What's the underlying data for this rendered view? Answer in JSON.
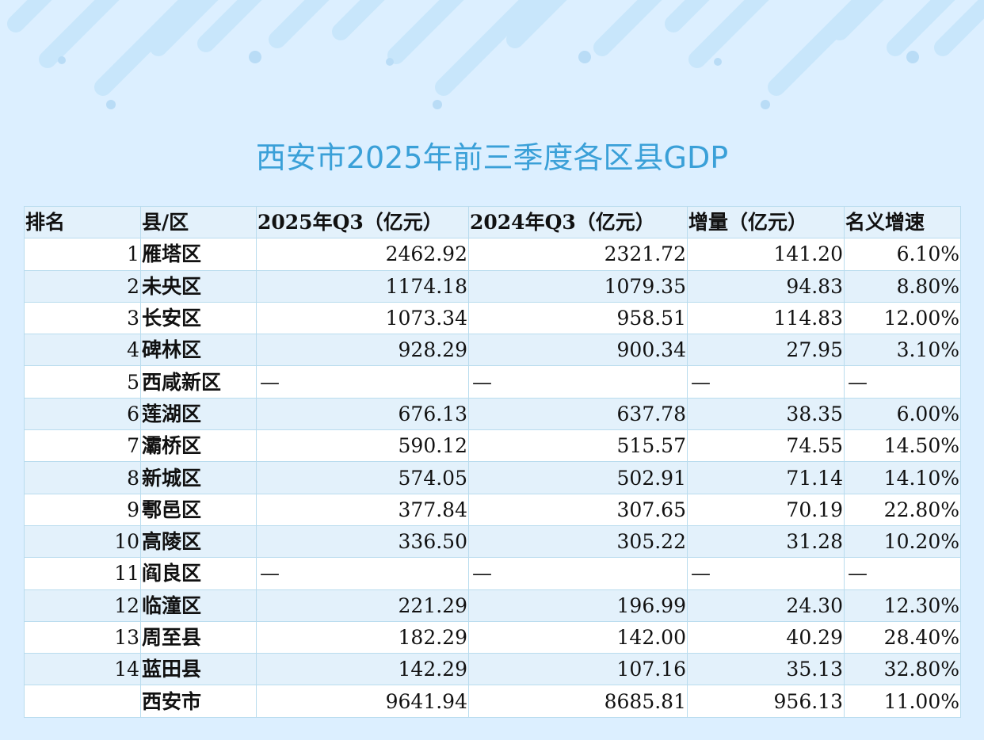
{
  "title": "西安市2025年前三季度各区县GDP",
  "colors": {
    "title": "#3aa0d8",
    "background": "#dcefff",
    "row_alt": "#e3f1fb",
    "border": "#b9dcee"
  },
  "table": {
    "headers": [
      "排名",
      "县/区",
      "2025年Q3（亿元）",
      "2024年Q3（亿元）",
      "增量（亿元）",
      "名义增速"
    ],
    "rows": [
      {
        "rank": "1",
        "name": "雁塔区",
        "v2025": "2462.92",
        "v2024": "2321.72",
        "increase": "141.20",
        "growth": "6.10%"
      },
      {
        "rank": "2",
        "name": "未央区",
        "v2025": "1174.18",
        "v2024": "1079.35",
        "increase": "94.83",
        "growth": "8.80%"
      },
      {
        "rank": "3",
        "name": "长安区",
        "v2025": "1073.34",
        "v2024": "958.51",
        "increase": "114.83",
        "growth": "12.00%"
      },
      {
        "rank": "4",
        "name": "碑林区",
        "v2025": "928.29",
        "v2024": "900.34",
        "increase": "27.95",
        "growth": "3.10%"
      },
      {
        "rank": "5",
        "name": "西咸新区",
        "v2025": "—",
        "v2024": "—",
        "increase": "—",
        "growth": "—"
      },
      {
        "rank": "6",
        "name": "莲湖区",
        "v2025": "676.13",
        "v2024": "637.78",
        "increase": "38.35",
        "growth": "6.00%"
      },
      {
        "rank": "7",
        "name": "灞桥区",
        "v2025": "590.12",
        "v2024": "515.57",
        "increase": "74.55",
        "growth": "14.50%"
      },
      {
        "rank": "8",
        "name": "新城区",
        "v2025": "574.05",
        "v2024": "502.91",
        "increase": "71.14",
        "growth": "14.10%"
      },
      {
        "rank": "9",
        "name": "鄠邑区",
        "v2025": "377.84",
        "v2024": "307.65",
        "increase": "70.19",
        "growth": "22.80%"
      },
      {
        "rank": "10",
        "name": "高陵区",
        "v2025": "336.50",
        "v2024": "305.22",
        "increase": "31.28",
        "growth": "10.20%"
      },
      {
        "rank": "11",
        "name": "阎良区",
        "v2025": "—",
        "v2024": "—",
        "increase": "—",
        "growth": "—"
      },
      {
        "rank": "12",
        "name": "临潼区",
        "v2025": "221.29",
        "v2024": "196.99",
        "increase": "24.30",
        "growth": "12.30%"
      },
      {
        "rank": "13",
        "name": "周至县",
        "v2025": "182.29",
        "v2024": "142.00",
        "increase": "40.29",
        "growth": "28.40%"
      },
      {
        "rank": "14",
        "name": "蓝田县",
        "v2025": "142.29",
        "v2024": "107.16",
        "increase": "35.13",
        "growth": "32.80%"
      },
      {
        "rank": "",
        "name": "西安市",
        "v2025": "9641.94",
        "v2024": "8685.81",
        "increase": "956.13",
        "growth": "11.00%"
      }
    ]
  },
  "chart_data": {
    "type": "table",
    "title": "西安市2025年前三季度各区县GDP",
    "columns": [
      "排名",
      "县/区",
      "2025年Q3（亿元）",
      "2024年Q3（亿元）",
      "增量（亿元）",
      "名义增速"
    ],
    "rows": [
      [
        "1",
        "雁塔区",
        "2462.92",
        "2321.72",
        "141.20",
        "6.10%"
      ],
      [
        "2",
        "未央区",
        "1174.18",
        "1079.35",
        "94.83",
        "8.80%"
      ],
      [
        "3",
        "长安区",
        "1073.34",
        "958.51",
        "114.83",
        "12.00%"
      ],
      [
        "4",
        "碑林区",
        "928.29",
        "900.34",
        "27.95",
        "3.10%"
      ],
      [
        "5",
        "西咸新区",
        "—",
        "—",
        "—",
        "—"
      ],
      [
        "6",
        "莲湖区",
        "676.13",
        "637.78",
        "38.35",
        "6.00%"
      ],
      [
        "7",
        "灞桥区",
        "590.12",
        "515.57",
        "74.55",
        "14.50%"
      ],
      [
        "8",
        "新城区",
        "574.05",
        "502.91",
        "71.14",
        "14.10%"
      ],
      [
        "9",
        "鄠邑区",
        "377.84",
        "307.65",
        "70.19",
        "22.80%"
      ],
      [
        "10",
        "高陵区",
        "336.50",
        "305.22",
        "31.28",
        "10.20%"
      ],
      [
        "11",
        "阎良区",
        "—",
        "—",
        "—",
        "—"
      ],
      [
        "12",
        "临潼区",
        "221.29",
        "196.99",
        "24.30",
        "12.30%"
      ],
      [
        "13",
        "周至县",
        "182.29",
        "142.00",
        "40.29",
        "28.40%"
      ],
      [
        "14",
        "蓝田县",
        "142.29",
        "107.16",
        "35.13",
        "32.80%"
      ],
      [
        "",
        "西安市",
        "9641.94",
        "8685.81",
        "956.13",
        "11.00%"
      ]
    ]
  }
}
